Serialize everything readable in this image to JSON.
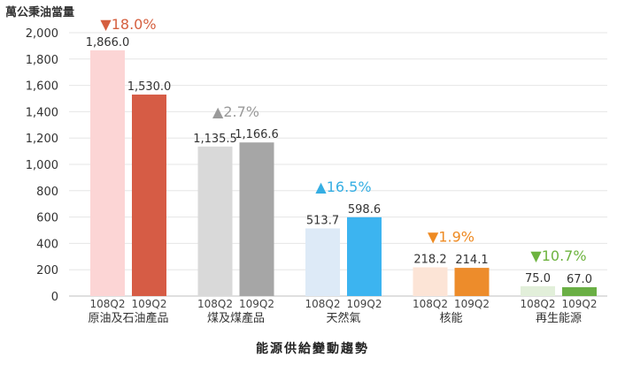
{
  "chart_data": {
    "type": "bar",
    "ylabel": "萬公秉油當量",
    "xlabel": "能源供給變動趨勢",
    "ylim": [
      0,
      2000
    ],
    "yticks": [
      0,
      200,
      400,
      600,
      800,
      1000,
      1200,
      1400,
      1600,
      1800,
      2000
    ],
    "ytick_labels": [
      "0",
      "200",
      "400",
      "600",
      "800",
      "1,000",
      "1,200",
      "1,400",
      "1,600",
      "1,800",
      "2,000"
    ],
    "grid": true,
    "period_labels": [
      "108Q2",
      "109Q2"
    ],
    "groups": [
      {
        "category": "原油及石油產品",
        "values": [
          1866.0,
          1530.0
        ],
        "value_labels": [
          "1,866.0",
          "1,530.0"
        ],
        "colors": [
          "#fcd5d5",
          "#d65c45"
        ],
        "change": "▼18.0%",
        "change_color": "#d55f3f"
      },
      {
        "category": "煤及煤產品",
        "values": [
          1135.5,
          1166.6
        ],
        "value_labels": [
          "1,135.5",
          "1,166.6"
        ],
        "colors": [
          "#d9d9d9",
          "#a6a6a6"
        ],
        "change": "▲2.7%",
        "change_color": "#9a9a9a"
      },
      {
        "category": "天然氣",
        "values": [
          513.7,
          598.6
        ],
        "value_labels": [
          "513.7",
          "598.6"
        ],
        "colors": [
          "#ddeaf7",
          "#3cb4f0"
        ],
        "change": "▲16.5%",
        "change_color": "#35aee3"
      },
      {
        "category": "核能",
        "values": [
          218.2,
          214.1
        ],
        "value_labels": [
          "218.2",
          "214.1"
        ],
        "colors": [
          "#fce4d6",
          "#ed8c2b"
        ],
        "change": "▼1.9%",
        "change_color": "#ee8a22"
      },
      {
        "category": "再生能源",
        "values": [
          75.0,
          67.0
        ],
        "value_labels": [
          "75.0",
          "67.0"
        ],
        "colors": [
          "#e2efda",
          "#6aaf45"
        ],
        "change": "▼10.7%",
        "change_color": "#6db33f"
      }
    ]
  }
}
